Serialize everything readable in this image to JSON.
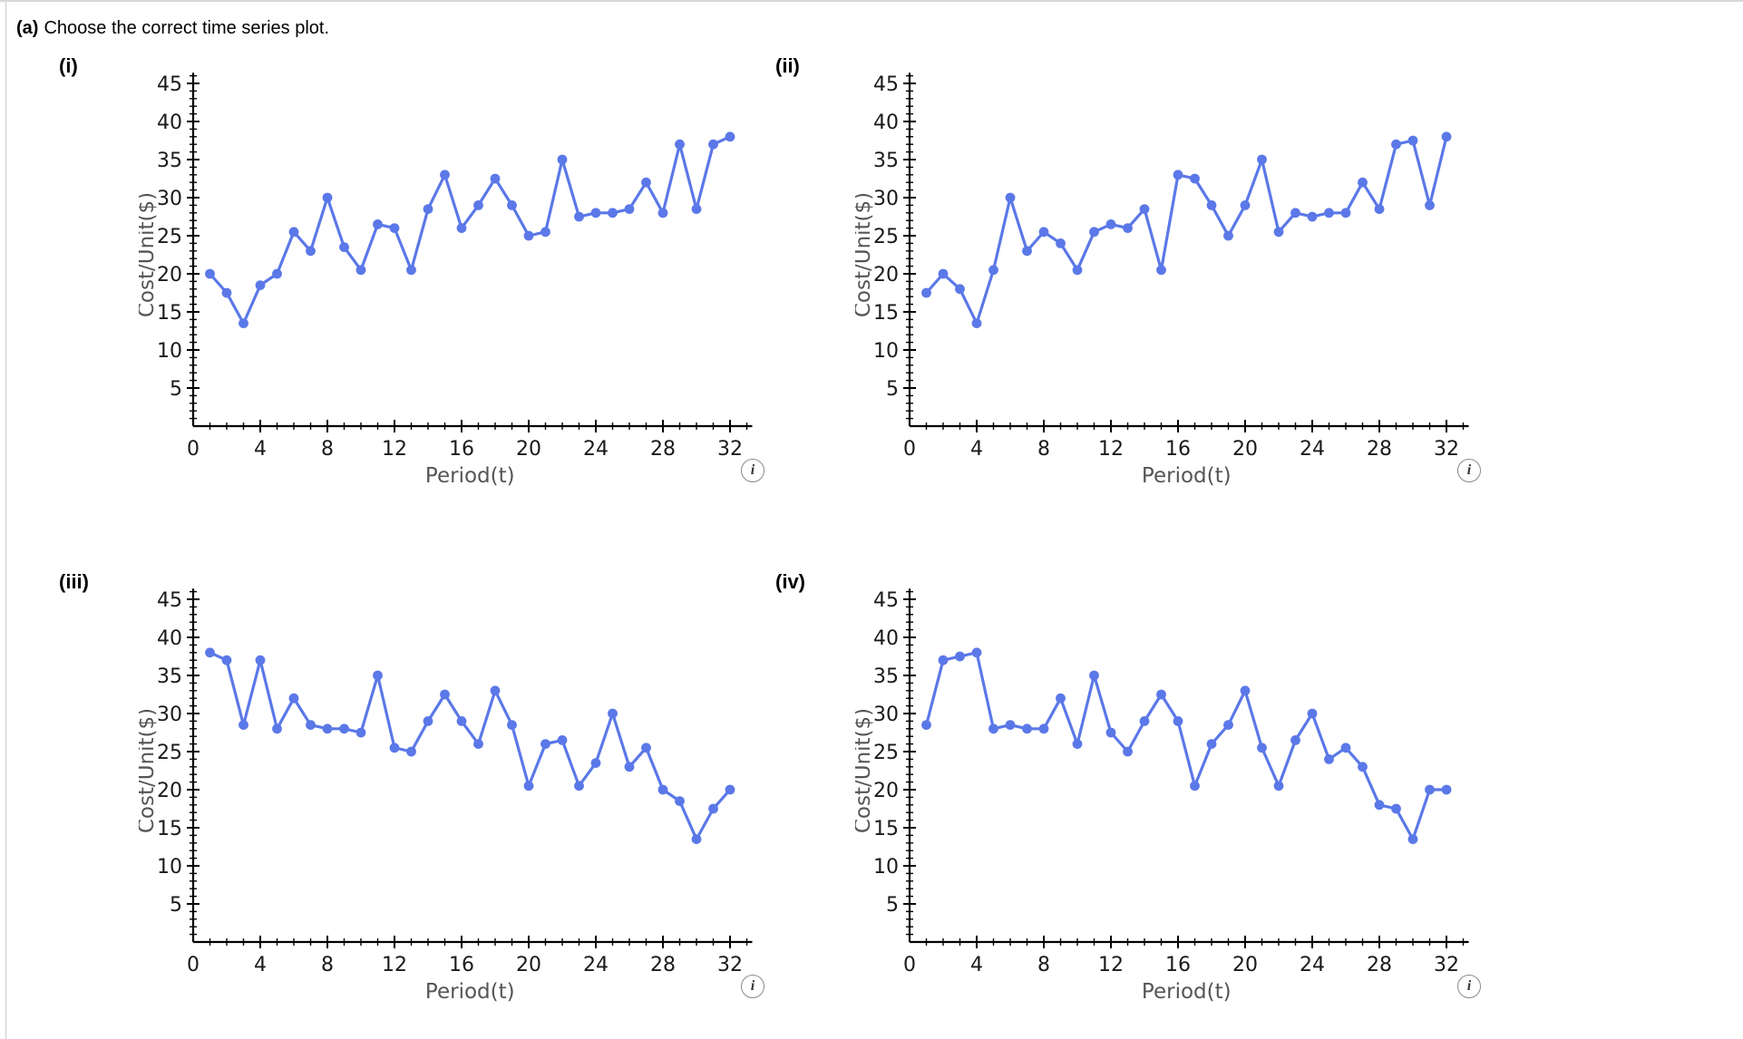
{
  "page": {
    "title_prefix": "(a)",
    "title_text": "Choose the correct time series plot."
  },
  "axes": {
    "xlabel": "Period(t)",
    "ylabel": "Cost/Unit($)",
    "xlim": [
      0,
      33
    ],
    "ylim": [
      0,
      46
    ],
    "x_major_step": 4,
    "y_major_step": 5,
    "x_tick_labels": [
      0,
      4,
      8,
      12,
      16,
      20,
      24,
      28,
      32
    ],
    "y_tick_labels": [
      5,
      10,
      15,
      20,
      25,
      30,
      35,
      40,
      45
    ],
    "grid": false,
    "legend": "none"
  },
  "styles": {
    "line_color": "#5b78e8",
    "axis_color": "#000000",
    "tick_label_color": "#1a1a1a",
    "axis_label_color": "#555555"
  },
  "info_icon": {
    "glyph": "i"
  },
  "periods": [
    1,
    2,
    3,
    4,
    5,
    6,
    7,
    8,
    9,
    10,
    11,
    12,
    13,
    14,
    15,
    16,
    17,
    18,
    19,
    20,
    21,
    22,
    23,
    24,
    25,
    26,
    27,
    28,
    29,
    30,
    31,
    32
  ],
  "chart_data": [
    {
      "id": "i",
      "label": "(i)",
      "type": "line",
      "xlabel": "Period(t)",
      "ylabel": "Cost/Unit($)",
      "x_start": 1,
      "values": [
        20,
        17.5,
        13.5,
        18.5,
        20,
        25.5,
        23,
        30,
        23.5,
        20.5,
        26.5,
        26,
        20.5,
        28.5,
        33,
        26,
        29,
        32.5,
        29,
        25,
        25.5,
        35,
        27.5,
        28,
        28,
        28.5,
        32,
        28,
        37,
        28.5,
        37,
        38
      ]
    },
    {
      "id": "ii",
      "label": "(ii)",
      "type": "line",
      "xlabel": "Period(t)",
      "ylabel": "Cost/Unit($)",
      "x_start": 1,
      "values": [
        17.5,
        20,
        18,
        13.5,
        20.5,
        30,
        23,
        25.5,
        24,
        20.5,
        25.5,
        26.5,
        26,
        28.5,
        20.5,
        33,
        32.5,
        29,
        25,
        29,
        35,
        25.5,
        28,
        27.5,
        28,
        28,
        32,
        28.5,
        37,
        37.5,
        29,
        38
      ]
    },
    {
      "id": "iii",
      "label": "(iii)",
      "type": "line",
      "xlabel": "Period(t)",
      "ylabel": "Cost/Unit($)",
      "x_start": 1,
      "values": [
        38,
        37,
        28.5,
        37,
        28,
        32,
        28.5,
        28,
        28,
        27.5,
        35,
        25.5,
        25,
        29,
        32.5,
        29,
        26,
        33,
        28.5,
        20.5,
        26,
        26.5,
        20.5,
        23.5,
        30,
        23,
        25.5,
        20,
        18.5,
        13.5,
        17.5,
        20
      ]
    },
    {
      "id": "iv",
      "label": "(iv)",
      "type": "line",
      "xlabel": "Period(t)",
      "ylabel": "Cost/Unit($)",
      "x_start": 1,
      "values": [
        28.5,
        37,
        37.5,
        38,
        28,
        28.5,
        28,
        28,
        32,
        26,
        35,
        27.5,
        25,
        29,
        32.5,
        29,
        20.5,
        26,
        28.5,
        33,
        25.5,
        20.5,
        26.5,
        30,
        24,
        25.5,
        23,
        18,
        17.5,
        13.5,
        20,
        20
      ]
    }
  ]
}
